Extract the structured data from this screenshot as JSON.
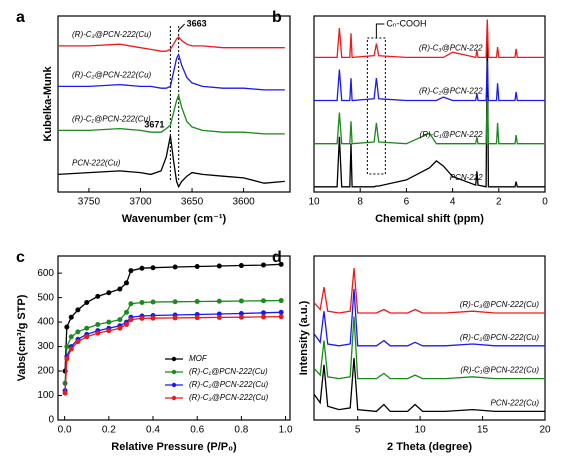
{
  "chart_data": [
    {
      "type": "line",
      "panel": "a",
      "xlabel": "Wavenumber (cm⁻¹)",
      "ylabel": "Kubelka-Munk",
      "x": [
        3780,
        3750,
        3720,
        3700,
        3690,
        3680,
        3675,
        3671,
        3668,
        3665,
        3663,
        3660,
        3655,
        3650,
        3640,
        3620,
        3600,
        3580,
        3560
      ],
      "xlim": [
        3780,
        3555
      ],
      "xticks": [
        3750,
        3700,
        3650,
        3600
      ],
      "ylim": [
        0,
        10
      ],
      "series": [
        {
          "name": "PCN-222(Cu)",
          "color": "#000000",
          "values": [
            1.0,
            1.1,
            1.2,
            1.1,
            1.0,
            1.2,
            2.0,
            3.2,
            1.8,
            0.6,
            0.3,
            0.6,
            0.9,
            1.1,
            1.0,
            0.9,
            0.8,
            0.5,
            0.6
          ]
        },
        {
          "name": "(R)-C₁@PCN-222(Cu)",
          "color": "#1a8a1a",
          "values": [
            3.5,
            3.5,
            3.6,
            3.5,
            3.4,
            3.4,
            3.6,
            3.8,
            4.5,
            5.2,
            5.5,
            4.8,
            4.0,
            3.7,
            3.5,
            3.4,
            3.4,
            3.3,
            3.3
          ]
        },
        {
          "name": "(R)-C₂@PCN-222(Cu)",
          "color": "#1a1aee",
          "values": [
            6.0,
            6.0,
            6.1,
            6.0,
            6.0,
            5.9,
            5.9,
            6.0,
            6.8,
            7.6,
            7.8,
            7.2,
            6.5,
            6.2,
            6.0,
            5.9,
            5.9,
            5.8,
            5.8
          ]
        },
        {
          "name": "(R)-C₃@PCN-222(Cu)",
          "color": "#ee1a1a",
          "values": [
            8.3,
            8.3,
            8.4,
            8.2,
            8.1,
            8.0,
            8.0,
            8.1,
            8.4,
            8.7,
            8.8,
            8.6,
            8.4,
            8.3,
            8.3,
            8.2,
            8.2,
            8.2,
            8.2
          ]
        }
      ],
      "annotations": [
        {
          "label": "3663",
          "x": 3663
        },
        {
          "label": "3671",
          "x": 3671
        }
      ]
    },
    {
      "type": "line",
      "panel": "b",
      "xlabel": "Chemical shift (ppm)",
      "x": [
        10,
        9.0,
        8.9,
        8.8,
        8.45,
        8.4,
        8.35,
        7.4,
        7.3,
        7.2,
        6.0,
        5.0,
        4.7,
        4.4,
        4.0,
        3.0,
        2.95,
        2.9,
        2.55,
        2.5,
        2.45,
        2.1,
        2.05,
        2.0,
        1.3,
        1.25,
        1.2,
        0.5,
        0
      ],
      "xlim": [
        10,
        0
      ],
      "xticks": [
        10,
        8,
        6,
        4,
        2,
        0
      ],
      "ylim": [
        0,
        10.2
      ],
      "series": [
        {
          "name": "PCN-222",
          "color": "#000000",
          "values": [
            0.3,
            0.3,
            3.2,
            0.3,
            0.3,
            2.8,
            0.3,
            0.3,
            0.35,
            0.35,
            0.7,
            1.4,
            1.8,
            1.5,
            0.9,
            0.4,
            1.2,
            0.4,
            0.3,
            9.8,
            0.3,
            0.3,
            0.3,
            0.3,
            0.3,
            0.6,
            0.3,
            0.3,
            0.3
          ]
        },
        {
          "name": "(R)-C₁@PCN-222",
          "color": "#1a8a1a",
          "values": [
            2.8,
            2.8,
            4.6,
            2.8,
            2.8,
            4.1,
            2.8,
            2.9,
            4.0,
            2.9,
            2.8,
            3.4,
            2.8,
            2.8,
            2.8,
            2.8,
            3.2,
            2.8,
            2.8,
            5.5,
            2.8,
            2.8,
            4.0,
            2.8,
            2.8,
            3.3,
            2.8,
            2.8,
            2.8
          ]
        },
        {
          "name": "(R)-C₂@PCN-222",
          "color": "#1a1aee",
          "values": [
            5.3,
            5.3,
            7.1,
            5.3,
            5.3,
            6.6,
            5.3,
            5.4,
            6.6,
            5.4,
            5.3,
            5.3,
            5.3,
            5.5,
            5.3,
            5.3,
            5.7,
            5.3,
            5.3,
            7.6,
            5.3,
            5.3,
            6.3,
            5.3,
            5.3,
            5.8,
            5.3,
            5.3,
            5.3
          ]
        },
        {
          "name": "(R)-C₃@PCN-222",
          "color": "#ee1a1a",
          "values": [
            7.8,
            7.8,
            9.5,
            7.8,
            7.8,
            9.2,
            7.8,
            7.9,
            8.6,
            7.9,
            7.8,
            7.8,
            7.8,
            7.8,
            8.1,
            7.8,
            8.2,
            7.8,
            7.8,
            10,
            7.8,
            7.8,
            8.4,
            7.8,
            7.8,
            8.3,
            7.8,
            7.8,
            7.8
          ]
        }
      ],
      "annotations": [
        {
          "label": "Cₙ-COOH",
          "x": 7.3
        }
      ]
    },
    {
      "type": "line",
      "panel": "c",
      "xlabel": "Relative Pressure (P/P₀)",
      "ylabel": "Vabs(cm³/g STP)",
      "x": [
        0.002,
        0.01,
        0.03,
        0.06,
        0.1,
        0.15,
        0.2,
        0.25,
        0.28,
        0.3,
        0.35,
        0.4,
        0.5,
        0.6,
        0.7,
        0.8,
        0.9,
        0.98
      ],
      "xlim": [
        -0.03,
        1.02
      ],
      "xticks": [
        {
          "value": 0,
          "label": "0.0"
        },
        0.2,
        0.4,
        0.6,
        0.8,
        {
          "value": 1,
          "label": "1.0"
        }
      ],
      "ylim": [
        0,
        670
      ],
      "yticks": [
        0,
        100,
        200,
        300,
        400,
        500,
        600
      ],
      "markers": true,
      "legend": "lower right",
      "series": [
        {
          "name": "MOF",
          "color": "#000000",
          "values": [
            200,
            380,
            420,
            450,
            480,
            505,
            520,
            535,
            560,
            610,
            620,
            622,
            625,
            627,
            629,
            631,
            633,
            636
          ]
        },
        {
          "name": "(R)-C₁@PCN-222(Cu)",
          "color": "#1a8a1a",
          "values": [
            150,
            300,
            340,
            360,
            375,
            390,
            400,
            410,
            440,
            475,
            480,
            482,
            483,
            484,
            485,
            486,
            487,
            488
          ]
        },
        {
          "name": "(R)-C₂@PCN-222(Cu)",
          "color": "#1a1aee",
          "values": [
            120,
            260,
            300,
            330,
            350,
            365,
            375,
            385,
            400,
            420,
            425,
            427,
            429,
            431,
            433,
            435,
            438,
            440
          ]
        },
        {
          "name": "(R)-C₃@PCN-222(Cu)",
          "color": "#ee1a1a",
          "values": [
            110,
            250,
            290,
            320,
            340,
            355,
            365,
            375,
            390,
            410,
            415,
            416,
            417,
            418,
            419,
            420,
            421,
            422
          ]
        }
      ]
    },
    {
      "type": "line",
      "panel": "d",
      "xlabel": "2 Theta (degree)",
      "ylabel": "Intensity (a.u.)",
      "x": [
        1.5,
        2.0,
        2.3,
        2.6,
        3.5,
        4.4,
        4.7,
        5.0,
        6.5,
        7.1,
        7.6,
        9.0,
        9.6,
        10.2,
        12,
        14.2,
        16,
        20
      ],
      "xlim": [
        1.5,
        20
      ],
      "xticks": [
        5,
        10,
        15,
        20
      ],
      "ylim": [
        0,
        9.5
      ],
      "series": [
        {
          "name": "PCN-222(Cu)",
          "color": "#000000",
          "values": [
            1.5,
            1.0,
            3.2,
            0.8,
            0.6,
            0.7,
            3.6,
            0.6,
            0.5,
            0.9,
            0.5,
            0.5,
            0.9,
            0.5,
            0.5,
            0.6,
            0.5,
            0.5
          ]
        },
        {
          "name": "(R)-C₁@PCN-222(Cu)",
          "color": "#1a8a1a",
          "values": [
            3.0,
            2.6,
            4.6,
            2.5,
            2.4,
            2.5,
            6.0,
            2.4,
            2.4,
            2.7,
            2.4,
            2.4,
            2.6,
            2.4,
            2.4,
            2.5,
            2.4,
            2.4
          ]
        },
        {
          "name": "(R)-C₂@PCN-222(Cu)",
          "color": "#1a1aee",
          "values": [
            5.0,
            4.5,
            6.3,
            4.4,
            4.3,
            4.4,
            7.6,
            4.3,
            4.3,
            4.6,
            4.3,
            4.3,
            4.5,
            4.3,
            4.3,
            4.4,
            4.3,
            4.3
          ]
        },
        {
          "name": "(R)-C₃@PCN-222(Cu)",
          "color": "#ee1a1a",
          "values": [
            6.8,
            6.4,
            7.7,
            6.3,
            6.2,
            6.3,
            8.8,
            6.2,
            6.2,
            6.4,
            6.2,
            6.2,
            6.4,
            6.2,
            6.2,
            6.3,
            6.2,
            6.2
          ]
        }
      ]
    }
  ]
}
